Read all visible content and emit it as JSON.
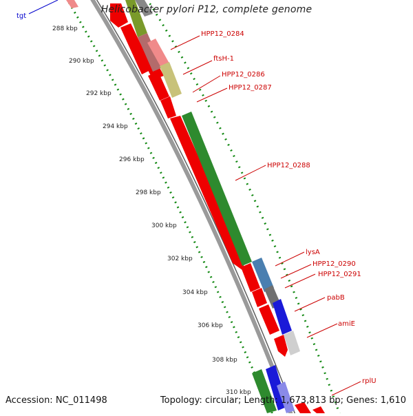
{
  "title": "Helicobacter pylori P12, complete genome",
  "footer": {
    "accession": "Accession: NC_011498",
    "summary": "Topology: circular; Length: 1,673,813 bp; Genes: 1,610"
  },
  "colors": {
    "tick": "#118811",
    "label_red": "#cc0000",
    "label_blue": "#0000cc"
  },
  "ticks": [
    {
      "label": "288 kbp"
    },
    {
      "label": "290 kbp"
    },
    {
      "label": "292 kbp"
    },
    {
      "label": "294 kbp"
    },
    {
      "label": "296 kbp"
    },
    {
      "label": "298 kbp"
    },
    {
      "label": "300 kbp"
    },
    {
      "label": "302 kbp"
    },
    {
      "label": "304 kbp"
    },
    {
      "label": "306 kbp"
    },
    {
      "label": "308 kbp"
    },
    {
      "label": "310 kbp"
    }
  ],
  "genes": [
    {
      "name": "tgt",
      "color": "#0000cc"
    },
    {
      "name": "HPP12_0284",
      "color": "#cc0000"
    },
    {
      "name": "ftsH-1",
      "color": "#cc0000"
    },
    {
      "name": "HPP12_0286",
      "color": "#cc0000"
    },
    {
      "name": "HPP12_0287",
      "color": "#cc0000"
    },
    {
      "name": "HPP12_0288",
      "color": "#cc0000"
    },
    {
      "name": "lysA",
      "color": "#cc0000"
    },
    {
      "name": "HPP12_0290",
      "color": "#cc0000"
    },
    {
      "name": "HPP12_0291",
      "color": "#cc0000"
    },
    {
      "name": "pabB",
      "color": "#cc0000"
    },
    {
      "name": "amiE",
      "color": "#cc0000"
    },
    {
      "name": "rplU",
      "color": "#cc0000"
    }
  ]
}
